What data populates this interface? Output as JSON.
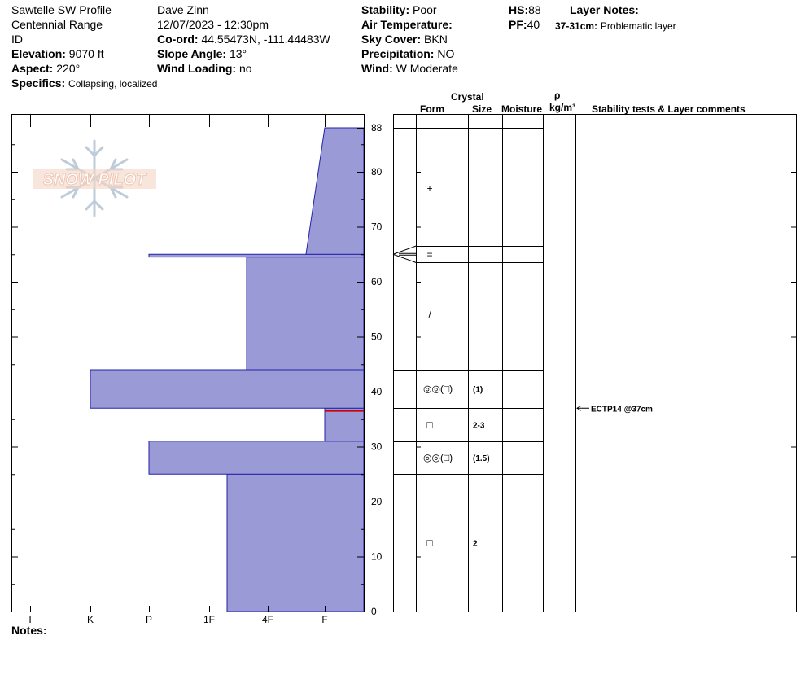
{
  "header": {
    "location": "Sawtelle SW Profile",
    "range": "Centennial Range",
    "state": "ID",
    "elevation_label": "Elevation:",
    "elevation_value": "9070 ft",
    "aspect_label": "Aspect:",
    "aspect_value": "220°",
    "specifics_label": "Specifics:",
    "specifics_value": "Collapsing, localized",
    "observer": "Dave Zinn",
    "datetime": "12/07/2023 - 12:30pm",
    "coord_label": "Co-ord:",
    "coord_value": "44.55473N, -111.44483W",
    "slope_label": "Slope Angle:",
    "slope_value": "13°",
    "wind_loading_label": "Wind Loading:",
    "wind_loading_value": "no",
    "stability_label": "Stability:",
    "stability_value": "Poor",
    "air_temp_label": "Air Temperature:",
    "sky_label": "Sky Cover:",
    "sky_value": "BKN",
    "precip_label": "Precipitation:",
    "precip_value": "NO",
    "wind_label": "Wind:",
    "wind_value": "W Moderate",
    "hs_label": "HS:",
    "hs_value": "88",
    "pf_label": "PF:",
    "pf_value": "40",
    "layer_notes_label": "Layer Notes:",
    "layer_note_range": "37-31cm:",
    "layer_note_text": "Problematic layer"
  },
  "logo": {
    "text": "SNOW PILOT"
  },
  "columns": {
    "crystal": "Crystal",
    "form": "Form",
    "size": "Size",
    "moisture": "Moisture",
    "rho": "ρ",
    "density_unit": "kg/m³",
    "stability": "Stability tests & Layer comments"
  },
  "notes_label": "Notes:",
  "colors": {
    "fill": "#9a9ad6",
    "outline": "#2222aa",
    "weak_layer": "#cc0000"
  },
  "chart_data": {
    "type": "bar",
    "orientation": "horizontal",
    "yaxis": {
      "ylim": [
        0,
        88
      ],
      "ticks": [
        0,
        10,
        20,
        30,
        40,
        50,
        60,
        70,
        80,
        88
      ]
    },
    "xaxis": {
      "categories": [
        "I",
        "K",
        "P",
        "1F",
        "4F",
        "F"
      ],
      "direction": "right-to-left"
    },
    "hardness_layers": [
      {
        "bottom": 0,
        "top": 25,
        "hardness": "1F+"
      },
      {
        "bottom": 25,
        "top": 31,
        "hardness": "P"
      },
      {
        "bottom": 31,
        "top": 37,
        "hardness": "F"
      },
      {
        "bottom": 37,
        "top": 44,
        "hardness": "K"
      },
      {
        "bottom": 44,
        "top": 64.5,
        "hardness": "4F"
      },
      {
        "bottom": 64.5,
        "top": 65,
        "hardness": "P"
      },
      {
        "bottom": 65,
        "top": 88,
        "hardness_bottom": "4F-",
        "hardness_top": "F"
      }
    ],
    "weak_layer_depth": 36.5,
    "layer_boundaries": [
      25,
      31,
      37,
      44,
      63.5,
      66.5,
      88
    ],
    "crystals": [
      {
        "height": 77,
        "form": "+",
        "size": ""
      },
      {
        "height": 65,
        "form": "=",
        "size": ""
      },
      {
        "height": 54,
        "form": "/",
        "size": ""
      },
      {
        "height": 40.5,
        "form": "◎◎(□)",
        "size": "(1)"
      },
      {
        "height": 34,
        "form": "□",
        "size": "2-3"
      },
      {
        "height": 28,
        "form": "◎◎(□)",
        "size": "(1.5)"
      },
      {
        "height": 12.5,
        "form": "□",
        "size": "2"
      }
    ],
    "stability_tests": [
      {
        "height": 37,
        "label": "ECTP14 @37cm"
      }
    ]
  }
}
